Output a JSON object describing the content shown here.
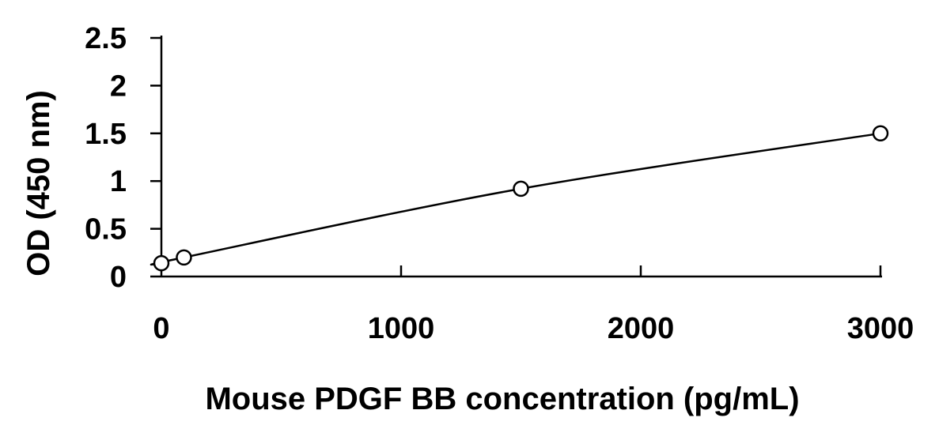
{
  "chart_data": {
    "type": "scatter",
    "title": "",
    "xlabel": "Mouse PDGF BB concentration (pg/mL)",
    "ylabel": "OD (450 nm)",
    "xlim": [
      0,
      3000
    ],
    "ylim": [
      0,
      2.5
    ],
    "xticks": [
      0,
      1000,
      2000,
      3000
    ],
    "xtick_labels": [
      "0",
      "1000",
      "2000",
      "3000"
    ],
    "yticks": [
      0,
      0.5,
      1,
      1.5,
      2,
      2.5
    ],
    "ytick_labels": [
      "0",
      "0.5",
      "1",
      "1.5",
      "2",
      "2.5"
    ],
    "grid": false,
    "legend": "none",
    "series": [
      {
        "x": [
          0,
          94,
          1500,
          3000
        ],
        "y": [
          0.14,
          0.2,
          0.92,
          1.5
        ],
        "marker": "open-circle",
        "trendline": "smooth",
        "color": "#000000"
      }
    ]
  }
}
